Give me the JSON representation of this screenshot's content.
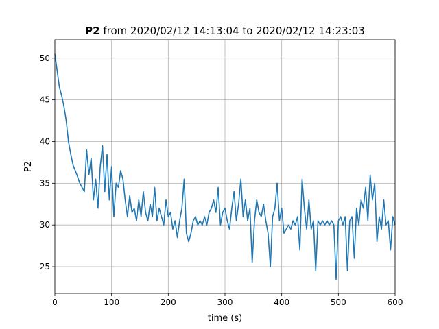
{
  "chart_data": {
    "type": "line",
    "title_parts": [
      "P2",
      "from 2020/02/12 14:13:04 to 2020/02/12 14:23:03"
    ],
    "x_label": "time (s)",
    "y_label": "P2",
    "xlim": [
      0,
      600
    ],
    "xticks": [
      0,
      100,
      200,
      300,
      400,
      500,
      600
    ],
    "ylim": [
      21.8,
      52.2
    ],
    "yticks": [
      25,
      30,
      35,
      40,
      45,
      50
    ],
    "grid": true,
    "x": [
      0,
      4,
      8,
      12,
      16,
      20,
      24,
      28,
      32,
      36,
      40,
      44,
      48,
      52,
      56,
      60,
      64,
      68,
      72,
      76,
      80,
      84,
      88,
      92,
      96,
      100,
      104,
      108,
      112,
      116,
      120,
      124,
      128,
      132,
      136,
      140,
      144,
      148,
      152,
      156,
      160,
      164,
      168,
      172,
      176,
      180,
      184,
      188,
      192,
      196,
      200,
      204,
      208,
      212,
      216,
      220,
      224,
      228,
      232,
      236,
      240,
      244,
      248,
      252,
      256,
      260,
      264,
      268,
      272,
      276,
      280,
      284,
      288,
      292,
      296,
      300,
      304,
      308,
      312,
      316,
      320,
      324,
      328,
      332,
      336,
      340,
      344,
      348,
      352,
      356,
      360,
      364,
      368,
      372,
      376,
      380,
      384,
      388,
      392,
      396,
      400,
      404,
      408,
      412,
      416,
      420,
      424,
      428,
      432,
      436,
      440,
      444,
      448,
      452,
      456,
      460,
      464,
      468,
      472,
      476,
      480,
      484,
      488,
      492,
      496,
      500,
      504,
      508,
      512,
      516,
      520,
      524,
      528,
      532,
      536,
      540,
      544,
      548,
      552,
      556,
      560,
      564,
      568,
      572,
      576,
      580,
      584,
      588,
      592,
      596,
      600
    ],
    "series": [
      {
        "name": "P2",
        "color": "#1f77b4",
        "values": [
          50.5,
          48.5,
          46.5,
          45.5,
          44.2,
          42.5,
          40,
          38.5,
          37.2,
          36.5,
          35.8,
          35,
          34.5,
          34,
          39,
          36,
          38,
          33,
          35.5,
          32,
          37,
          39.5,
          34,
          38.5,
          33,
          37,
          31,
          35,
          34.5,
          36.5,
          35.5,
          33,
          31,
          33.5,
          31.5,
          32,
          30.5,
          33,
          31,
          34,
          31.5,
          30.5,
          32.5,
          31,
          34.5,
          30.5,
          32,
          31,
          30,
          33,
          31,
          31.5,
          29.5,
          30.5,
          28.5,
          30.5,
          32,
          35.5,
          29,
          28,
          29,
          30.5,
          31,
          30,
          30.5,
          30,
          31,
          30,
          31.5,
          32,
          33,
          31.5,
          34.5,
          30,
          31.5,
          32,
          30.5,
          29.5,
          32,
          34,
          30.5,
          32.5,
          35.5,
          31,
          33,
          30.5,
          32,
          25.5,
          30.5,
          33,
          31.5,
          31,
          32.5,
          30.5,
          29,
          25,
          31,
          32,
          35,
          30.5,
          32,
          29,
          29.5,
          30,
          29.5,
          30.5,
          30,
          31,
          27,
          35.5,
          32,
          29.5,
          33,
          29.5,
          30.5,
          24.5,
          30.5,
          30,
          30.5,
          30,
          30.5,
          30,
          30.5,
          30,
          23.5,
          30.5,
          31,
          30,
          31,
          24.5,
          30.5,
          31,
          26,
          32,
          30,
          33,
          32,
          34.5,
          30.5,
          36,
          33,
          35,
          28,
          31,
          29.5,
          33,
          30,
          30.5,
          27,
          31,
          30
        ]
      }
    ]
  }
}
